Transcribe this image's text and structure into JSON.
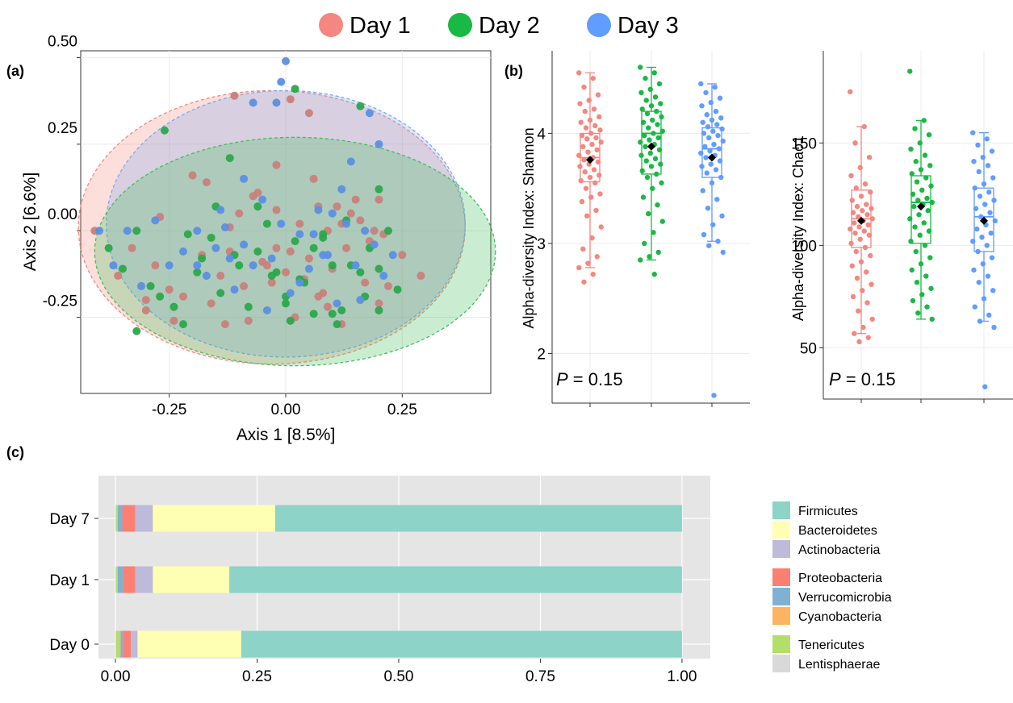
{
  "legend": {
    "items": [
      {
        "label": "Day 1",
        "color": "#f4877f"
      },
      {
        "label": "Day 2",
        "color": "#1ab844"
      },
      {
        "label": "Day 3",
        "color": "#619cff"
      }
    ]
  },
  "chart_data": [
    {
      "panel": "(a)",
      "type": "scatter",
      "title": "",
      "xlabel": "Axis 1 [8.5%]",
      "ylabel": "Axis 2 [6.6%]",
      "xlim": [
        -0.44,
        0.44
      ],
      "ylim": [
        -0.47,
        0.52
      ],
      "xticks": [
        -0.25,
        0.0,
        0.25
      ],
      "xtick_labels": [
        "-0.25",
        "0.00",
        "0.25"
      ],
      "yticks": [
        0.5,
        0.25,
        0.0,
        -0.25
      ],
      "ytick_labels": [
        "0.50",
        "0.25",
        "0.00",
        "-0.25"
      ],
      "grid": true,
      "series": [
        {
          "name": "Day 1",
          "color": "#c97f7a",
          "x": [
            -0.41,
            -0.36,
            -0.33,
            -0.3,
            -0.28,
            -0.25,
            -0.22,
            -0.2,
            -0.18,
            -0.16,
            -0.14,
            -0.12,
            -0.1,
            -0.09,
            -0.07,
            -0.05,
            -0.03,
            -0.02,
            0.0,
            0.02,
            0.03,
            0.05,
            0.06,
            0.08,
            0.09,
            0.1,
            0.12,
            0.13,
            0.15,
            0.17,
            0.18,
            0.2,
            0.22,
            0.25,
            0.29,
            -0.3,
            -0.27,
            -0.24,
            -0.13,
            -0.08,
            -0.06,
            -0.02,
            0.01,
            0.04,
            0.07,
            0.09,
            0.11,
            0.14,
            0.19,
            0.21,
            -0.17,
            -0.11,
            -0.04,
            0.07,
            0.16,
            0.12,
            0.2,
            0.05,
            -0.12,
            -0.02,
            0.01
          ],
          "y": [
            -0.0,
            -0.13,
            -0.05,
            -0.23,
            -0.1,
            -0.17,
            -0.19,
            0.16,
            -0.07,
            -0.21,
            -0.13,
            0.01,
            0.05,
            -0.16,
            0.1,
            -0.09,
            -0.15,
            0.19,
            -0.12,
            -0.25,
            0.02,
            -0.08,
            0.15,
            -0.18,
            0.0,
            -0.11,
            -0.27,
            -0.05,
            0.09,
            -0.15,
            -0.03,
            -0.21,
            -0.16,
            -0.07,
            -0.13,
            -0.2,
            0.04,
            -0.26,
            -0.27,
            -0.26,
            0.11,
            -0.05,
            -0.06,
            -0.14,
            0.07,
            -0.22,
            0.07,
            0.05,
            0.0,
            -0.01,
            0.14,
            0.39,
            -0.1,
            -0.19,
            0.03,
            0.02,
            0.09,
            0.34,
            -0.06,
            0.06,
            0.38
          ]
        },
        {
          "name": "Day 2",
          "color": "#2aa84a",
          "x": [
            -0.38,
            -0.35,
            -0.32,
            -0.29,
            -0.26,
            -0.24,
            -0.21,
            -0.19,
            -0.16,
            -0.14,
            -0.12,
            -0.1,
            -0.08,
            -0.06,
            -0.04,
            -0.02,
            0.0,
            0.02,
            0.04,
            0.06,
            0.08,
            0.1,
            0.12,
            0.14,
            0.16,
            0.18,
            0.2,
            0.22,
            0.24,
            -0.32,
            -0.22,
            -0.15,
            -0.06,
            0.01,
            0.03,
            0.11,
            0.17,
            0.13,
            0.06,
            -0.03,
            -0.11,
            0.08,
            0.2,
            0.16,
            0.02,
            -0.18,
            -0.27,
            0.0,
            0.1,
            0.2
          ],
          "y": [
            -0.05,
            -0.11,
            -0.0,
            -0.16,
            0.29,
            -0.22,
            -0.01,
            -0.12,
            -0.02,
            -0.18,
            0.21,
            -0.1,
            -0.22,
            0.07,
            0.02,
            -0.12,
            -0.19,
            -0.03,
            -0.15,
            -0.24,
            -0.01,
            -0.1,
            -0.23,
            -0.1,
            0.36,
            -0.05,
            -0.23,
            0.0,
            -0.17,
            -0.29,
            -0.27,
            0.07,
            -0.06,
            -0.26,
            -0.14,
            -0.27,
            -0.19,
            0.03,
            -0.05,
            -0.13,
            -0.07,
            -0.02,
            0.12,
            -0.12,
            0.41,
            -0.08,
            -0.19,
            -0.21,
            -0.24,
            -0.11
          ]
        },
        {
          "name": "Day 3",
          "color": "#5b8fe3",
          "x": [
            -0.4,
            -0.37,
            -0.34,
            -0.31,
            -0.28,
            -0.25,
            -0.22,
            -0.19,
            -0.17,
            -0.15,
            -0.13,
            -0.11,
            -0.09,
            -0.07,
            -0.05,
            -0.03,
            -0.01,
            0.01,
            0.03,
            0.05,
            0.07,
            0.09,
            0.11,
            0.13,
            0.15,
            0.17,
            0.19,
            0.21,
            0.23,
            0.0,
            -0.01,
            -0.02,
            -0.07,
            0.1,
            0.14,
            0.18,
            -0.19,
            -0.09,
            0.03,
            0.12,
            0.06,
            -0.04,
            0.08,
            -0.14,
            0.16,
            0.2,
            -0.12
          ],
          "y": [
            -0.0,
            -0.1,
            0.0,
            -0.16,
            0.03,
            -0.1,
            -0.06,
            0.0,
            -0.13,
            -0.05,
            0.01,
            -0.17,
            -0.04,
            -0.1,
            0.09,
            -0.08,
            0.02,
            -0.18,
            -0.01,
            -0.11,
            0.06,
            -0.07,
            -0.21,
            0.02,
            -0.1,
            0.0,
            -0.04,
            -0.13,
            -0.07,
            0.49,
            0.43,
            0.37,
            0.37,
            0.05,
            0.2,
            0.34,
            -0.1,
            0.15,
            -0.15,
            0.12,
            -0.01,
            -0.23,
            -0.07,
            0.06,
            -0.2,
            0.25,
            -0.08
          ]
        }
      ],
      "ellipses": [
        {
          "name": "Day 1",
          "cx": -0.03,
          "cy": 0.01,
          "rx": 0.415,
          "ry": 0.395,
          "fill": "#f4877f"
        },
        {
          "name": "Day 3",
          "cx": 0.0,
          "cy": 0.02,
          "rx": 0.385,
          "ry": 0.385,
          "fill": "#7aaaf0"
        },
        {
          "name": "Day 2",
          "cx": 0.02,
          "cy": -0.06,
          "rx": 0.43,
          "ry": 0.33,
          "fill": "#3fbf5a"
        }
      ]
    },
    {
      "panel": "(b)",
      "type": "box",
      "title": "",
      "ylabel": "Alpha-diversity Index: Shannon",
      "ylim": [
        1.55,
        4.75
      ],
      "yticks": [
        2,
        3,
        4
      ],
      "ytick_labels": [
        "2",
        "3",
        "4"
      ],
      "annotation_italic": "P",
      "annotation_rest": " = 0.15",
      "grid": true,
      "groups": [
        {
          "name": "Day 1",
          "color": "#f4877f",
          "min": 2.78,
          "q1": 3.56,
          "median": 3.78,
          "q3": 4.0,
          "max": 4.55,
          "mean": 3.76,
          "points": [
            4.55,
            4.5,
            4.42,
            4.35,
            4.3,
            4.27,
            4.22,
            4.2,
            4.15,
            4.12,
            4.1,
            4.07,
            4.05,
            4.03,
            4.0,
            3.98,
            3.96,
            3.95,
            3.92,
            3.9,
            3.88,
            3.85,
            3.83,
            3.8,
            3.78,
            3.76,
            3.74,
            3.72,
            3.7,
            3.67,
            3.65,
            3.62,
            3.6,
            3.57,
            3.55,
            3.5,
            3.45,
            3.42,
            3.38,
            3.3,
            3.25,
            3.15,
            3.05,
            2.95,
            2.88,
            2.82,
            2.78,
            2.72,
            2.65
          ]
        },
        {
          "name": "Day 2",
          "color": "#1ab844",
          "min": 2.85,
          "q1": 3.63,
          "median": 4.0,
          "q3": 4.2,
          "max": 4.6,
          "mean": 3.88,
          "points": [
            4.6,
            4.55,
            4.5,
            4.45,
            4.4,
            4.37,
            4.33,
            4.3,
            4.27,
            4.25,
            4.22,
            4.2,
            4.18,
            4.15,
            4.12,
            4.1,
            4.08,
            4.05,
            4.02,
            4.0,
            3.98,
            3.96,
            3.94,
            3.92,
            3.9,
            3.88,
            3.85,
            3.82,
            3.8,
            3.77,
            3.75,
            3.72,
            3.7,
            3.66,
            3.63,
            3.6,
            3.55,
            3.5,
            3.42,
            3.35,
            3.27,
            3.2,
            3.1,
            3.0,
            2.92,
            2.88,
            2.85,
            2.72
          ]
        },
        {
          "name": "Day 3",
          "color": "#619cff",
          "min": 3.02,
          "q1": 3.6,
          "median": 3.86,
          "q3": 4.05,
          "max": 4.45,
          "mean": 3.78,
          "points": [
            4.45,
            4.42,
            4.37,
            4.32,
            4.28,
            4.25,
            4.2,
            4.17,
            4.14,
            4.12,
            4.1,
            4.08,
            4.06,
            4.04,
            4.02,
            4.0,
            3.98,
            3.96,
            3.93,
            3.9,
            3.88,
            3.86,
            3.84,
            3.82,
            3.8,
            3.78,
            3.75,
            3.72,
            3.7,
            3.67,
            3.64,
            3.6,
            3.55,
            3.48,
            3.4,
            3.32,
            3.25,
            3.17,
            3.08,
            3.02,
            2.98,
            2.92,
            1.62
          ]
        }
      ]
    },
    {
      "panel": "",
      "type": "box",
      "title": "",
      "ylabel": "Alpha-diversity Index: Chao1",
      "ylim": [
        25,
        195
      ],
      "yticks": [
        50,
        100,
        150
      ],
      "ytick_labels": [
        "50",
        "100",
        "150"
      ],
      "annotation_italic": "P",
      "annotation_rest": " = 0.15",
      "grid": true,
      "groups": [
        {
          "name": "Day 1",
          "color": "#f4877f",
          "min": 57,
          "q1": 99,
          "median": 113,
          "q3": 127,
          "max": 158,
          "mean": 112,
          "points": [
            175,
            158,
            150,
            143,
            138,
            134,
            130,
            128,
            126,
            124,
            122,
            120,
            119,
            118,
            117,
            116,
            115,
            114,
            113,
            112,
            111,
            110,
            109,
            108,
            107,
            106,
            105,
            103,
            101,
            99,
            97,
            95,
            92,
            90,
            87,
            84,
            81,
            78,
            75,
            72,
            68,
            64,
            60,
            57,
            55,
            53
          ]
        },
        {
          "name": "Day 2",
          "color": "#1ab844",
          "min": 64,
          "q1": 101,
          "median": 121,
          "q3": 134,
          "max": 161,
          "mean": 119,
          "points": [
            185,
            161,
            157,
            154,
            150,
            147,
            144,
            141,
            139,
            137,
            135,
            133,
            131,
            129,
            127,
            125,
            123,
            122,
            121,
            120,
            119,
            117,
            115,
            113,
            111,
            109,
            107,
            105,
            102,
            100,
            97,
            94,
            91,
            88,
            85,
            82,
            79,
            76,
            73,
            70,
            67,
            64
          ]
        },
        {
          "name": "Day 3",
          "color": "#619cff",
          "min": 63,
          "q1": 97,
          "median": 114,
          "q3": 128,
          "max": 155,
          "mean": 112,
          "points": [
            155,
            152,
            149,
            146,
            143,
            141,
            139,
            136,
            133,
            130,
            128,
            126,
            124,
            122,
            120,
            118,
            116,
            114,
            112,
            110,
            108,
            106,
            104,
            102,
            100,
            97,
            94,
            91,
            88,
            85,
            82,
            78,
            74,
            70,
            66,
            63,
            60,
            31
          ]
        }
      ]
    },
    {
      "panel": "(c)",
      "type": "bar",
      "orientation": "horizontal",
      "stacked": true,
      "title": "",
      "categories": [
        "Day 7",
        "Day 1",
        "Day 0"
      ],
      "xlim": [
        -0.03,
        1.05
      ],
      "xticks": [
        0.0,
        0.25,
        0.5,
        0.75,
        1.0
      ],
      "xtick_labels": [
        "0.00",
        "0.25",
        "0.50",
        "0.75",
        "1.00"
      ],
      "legend_position": "right",
      "series": [
        {
          "name": "Lentisphaerae",
          "color": "#d9d9d9",
          "values": [
            0.001,
            0.001,
            0.001
          ]
        },
        {
          "name": "Tenericutes",
          "color": "#b3de69",
          "values": [
            0.002,
            0.002,
            0.006
          ]
        },
        {
          "name": "Cyanobacteria",
          "color": "#fdb462",
          "values": [
            0.001,
            0.001,
            0.002
          ]
        },
        {
          "name": "Verrucomicrobia",
          "color": "#80b1d3",
          "values": [
            0.008,
            0.009,
            0.004
          ]
        },
        {
          "name": "Proteobacteria",
          "color": "#fb8072",
          "values": [
            0.023,
            0.022,
            0.014
          ]
        },
        {
          "name": "Actinobacteria",
          "color": "#bebada",
          "values": [
            0.031,
            0.031,
            0.012
          ]
        },
        {
          "name": "Bacteroidetes",
          "color": "#ffffb3",
          "values": [
            0.216,
            0.135,
            0.183
          ]
        },
        {
          "name": "Firmicutes",
          "color": "#8dd3c7",
          "values": [
            0.718,
            0.799,
            0.778
          ]
        }
      ],
      "legend_groups": [
        [
          "Firmicutes",
          "Bacteroidetes",
          "Actinobacteria"
        ],
        [
          "Proteobacteria",
          "Verrucomicrobia",
          "Cyanobacteria"
        ],
        [
          "Tenericutes",
          "Lentisphaerae"
        ]
      ]
    }
  ]
}
